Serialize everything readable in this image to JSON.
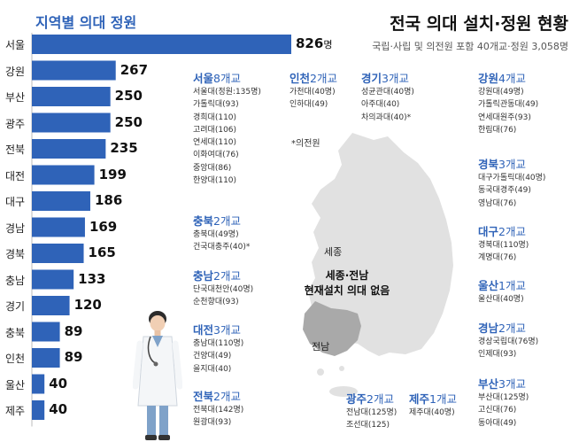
{
  "chart_data": {
    "type": "bar",
    "orientation": "horizontal",
    "title": "지역별 의대 정원",
    "categories": [
      "서울",
      "강원",
      "부산",
      "광주",
      "전북",
      "대전",
      "대구",
      "경남",
      "경북",
      "충남",
      "경기",
      "충북",
      "인천",
      "울산",
      "제주"
    ],
    "values": [
      826,
      267,
      250,
      250,
      235,
      199,
      186,
      169,
      165,
      133,
      120,
      89,
      89,
      40,
      40
    ],
    "value_labels": [
      "826",
      "267",
      "250",
      "250",
      "235",
      "199",
      "186",
      "169",
      "165",
      "133",
      "120",
      "89",
      "89",
      "40",
      "40"
    ],
    "first_value_unit": "명",
    "bar_color": "#2f63b8",
    "grid": false
  },
  "header": {
    "title": "전국 의대 설치·정원 현황",
    "subtitle": "국립·사립 및 의전원 포함 40개교·정원 3,058명"
  },
  "map": {
    "note": "*의전원",
    "sejong_label": "세종",
    "none_line1": "세종·전남",
    "none_line2": "현재설치 의대 없음",
    "jeonnam_label": "전남",
    "land_color": "#e1e1e1",
    "highlight_color": "#a9a9a9"
  },
  "regions": [
    {
      "name": "서울",
      "count": "8개교",
      "schools": [
        "서울대(정원:135명)",
        "가톨릭대(93)",
        "경희대(110)",
        "고려대(106)",
        "연세대(110)",
        "이화여대(76)",
        "중앙대(86)",
        "한양대(110)"
      ]
    },
    {
      "name": "충북",
      "count": "2개교",
      "schools": [
        "충북대(49명)",
        "건국대충주(40)*"
      ]
    },
    {
      "name": "충남",
      "count": "2개교",
      "schools": [
        "단국대천안(40명)",
        "순천향대(93)"
      ]
    },
    {
      "name": "대전",
      "count": "3개교",
      "schools": [
        "충남대(110명)",
        "건양대(49)",
        "을지대(40)"
      ]
    },
    {
      "name": "전북",
      "count": "2개교",
      "schools": [
        "전북대(142명)",
        "원광대(93)"
      ]
    },
    {
      "name": "인천",
      "count": "2개교",
      "schools": [
        "가천대(40명)",
        "인하대(49)"
      ]
    },
    {
      "name": "경기",
      "count": "3개교",
      "schools": [
        "성균관대(40명)",
        "아주대(40)",
        "차의과대(40)*"
      ]
    },
    {
      "name": "광주",
      "count": "2개교",
      "schools": [
        "전남대(125명)",
        "조선대(125)"
      ]
    },
    {
      "name": "제주",
      "count": "1개교",
      "schools": [
        "제주대(40명)"
      ]
    },
    {
      "name": "강원",
      "count": "4개교",
      "schools": [
        "강원대(49명)",
        "가톨릭관동대(49)",
        "연세대원주(93)",
        "한림대(76)"
      ]
    },
    {
      "name": "경북",
      "count": "3개교",
      "schools": [
        "대구가톨릭대(40명)",
        "동국대경주(49)",
        "영남대(76)"
      ]
    },
    {
      "name": "대구",
      "count": "2개교",
      "schools": [
        "경북대(110명)",
        "계명대(76)"
      ]
    },
    {
      "name": "울산",
      "count": "1개교",
      "schools": [
        "울산대(40명)"
      ]
    },
    {
      "name": "경남",
      "count": "2개교",
      "schools": [
        "경상국립대(76명)",
        "인제대(93)"
      ]
    },
    {
      "name": "부산",
      "count": "3개교",
      "schools": [
        "부산대(125명)",
        "고신대(76)",
        "동아대(49)"
      ]
    }
  ]
}
